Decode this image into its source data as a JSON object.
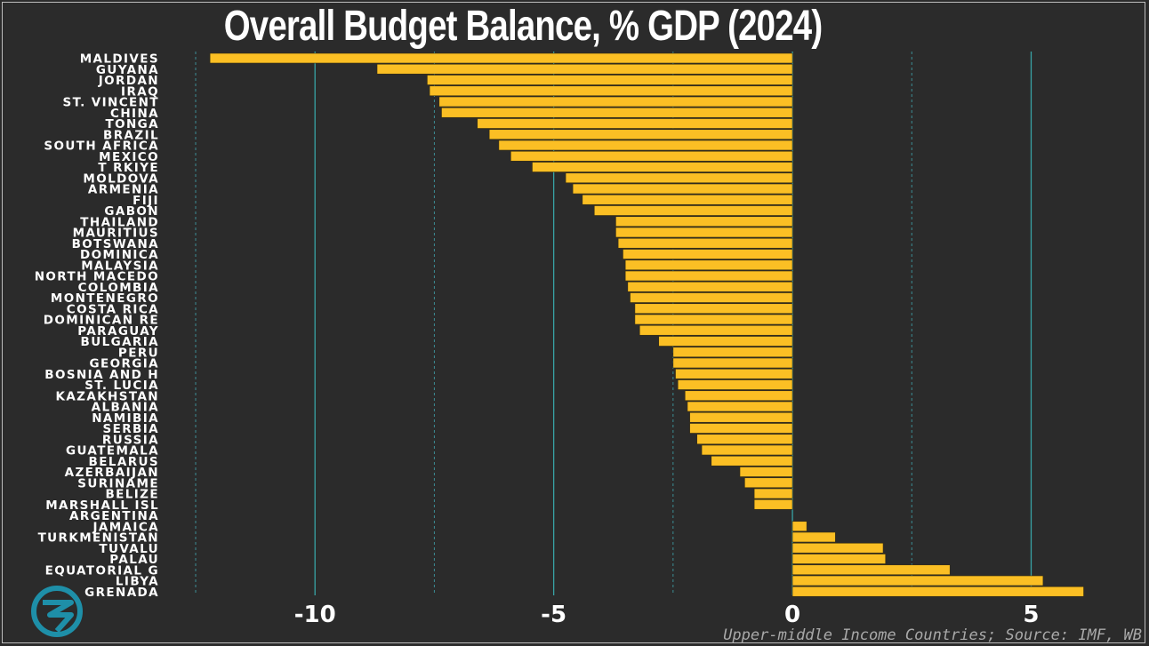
{
  "chart_data": {
    "type": "bar",
    "orientation": "horizontal",
    "title": "Overall Budget Balance, % GDP (2024)",
    "xlabel": "",
    "ylabel": "",
    "xlim": [
      -12.5,
      6.5
    ],
    "xticks": [
      -10,
      -5,
      0,
      5
    ],
    "xtick_labels": [
      "-10",
      "-5",
      "0",
      "5"
    ],
    "minor_gridlines": [
      -12.5,
      -7.5,
      -2.5,
      2.5
    ],
    "grid": true,
    "bar_color": "#fbbf24",
    "major_grid_color": "#38a3a5",
    "minor_grid_color": "#3c8d94",
    "categories": [
      "Maldives",
      "Guyana",
      "Jordan",
      "Iraq",
      "St. Vincent",
      "China",
      "Tonga",
      "Brazil",
      "South Africa",
      "Mexico",
      "T rkiye",
      "Moldova",
      "Armenia",
      "Fiji",
      "Gabon",
      "Thailand",
      "Mauritius",
      "Botswana",
      "Dominica",
      "Malaysia",
      "North Macedo",
      "Colombia",
      "Montenegro",
      "Costa Rica",
      "Dominican Re",
      "Paraguay",
      "Bulgaria",
      "Peru",
      "Georgia",
      "Bosnia and H",
      "St. Lucia",
      "Kazakhstan",
      "Albania",
      "Namibia",
      "Serbia",
      "Russia",
      "Guatemala",
      "Belarus",
      "Azerbaijan",
      "Suriname",
      "Belize",
      "Marshall Isl",
      "Argentina",
      "Jamaica",
      "Turkmenistan",
      "Tuvalu",
      "Palau",
      "Equatorial G",
      "Libya",
      "Grenada"
    ],
    "values": [
      -12.2,
      -8.7,
      -7.65,
      -7.6,
      -7.4,
      -7.35,
      -6.6,
      -6.35,
      -6.15,
      -5.9,
      -5.45,
      -4.75,
      -4.6,
      -4.4,
      -4.15,
      -3.7,
      -3.7,
      -3.65,
      -3.55,
      -3.5,
      -3.5,
      -3.45,
      -3.4,
      -3.3,
      -3.3,
      -3.2,
      -2.8,
      -2.5,
      -2.5,
      -2.45,
      -2.4,
      -2.25,
      -2.2,
      -2.15,
      -2.15,
      -2.0,
      -1.9,
      -1.7,
      -1.1,
      -1.0,
      -0.8,
      -0.8,
      0.0,
      0.3,
      0.9,
      1.9,
      1.95,
      3.3,
      5.25,
      6.1
    ]
  },
  "footer": {
    "source": "Upper-middle Income Countries; Source: IMF, WB",
    "logo_icon": "brand-logo-icon"
  }
}
